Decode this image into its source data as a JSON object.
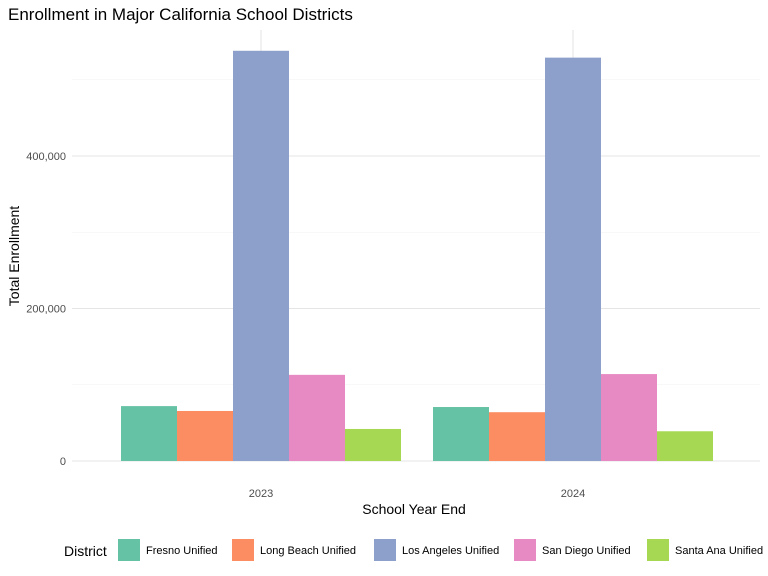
{
  "chart_data": {
    "type": "bar",
    "title": "Enrollment in Major California School Districts",
    "xlabel": "School Year End",
    "ylabel": "Total Enrollment",
    "categories": [
      "2023",
      "2024"
    ],
    "ylim": [
      0,
      560000
    ],
    "yticks": [
      0,
      200000,
      400000
    ],
    "ytick_labels": [
      "0",
      "200,000",
      "400,000"
    ],
    "grid": true,
    "legend_title": "District",
    "legend_position": "bottom",
    "series": [
      {
        "name": "Fresno Unified",
        "color": "#66c2a5",
        "values": [
          72000,
          70800
        ]
      },
      {
        "name": "Long Beach Unified",
        "color": "#fc8d62",
        "values": [
          65600,
          64000
        ]
      },
      {
        "name": "Los Angeles Unified",
        "color": "#8da0cb",
        "values": [
          538000,
          529000
        ]
      },
      {
        "name": "San Diego Unified",
        "color": "#e78ac3",
        "values": [
          113000,
          114000
        ]
      },
      {
        "name": "Santa Ana Unified",
        "color": "#a6d854",
        "values": [
          42000,
          39000
        ]
      }
    ]
  }
}
